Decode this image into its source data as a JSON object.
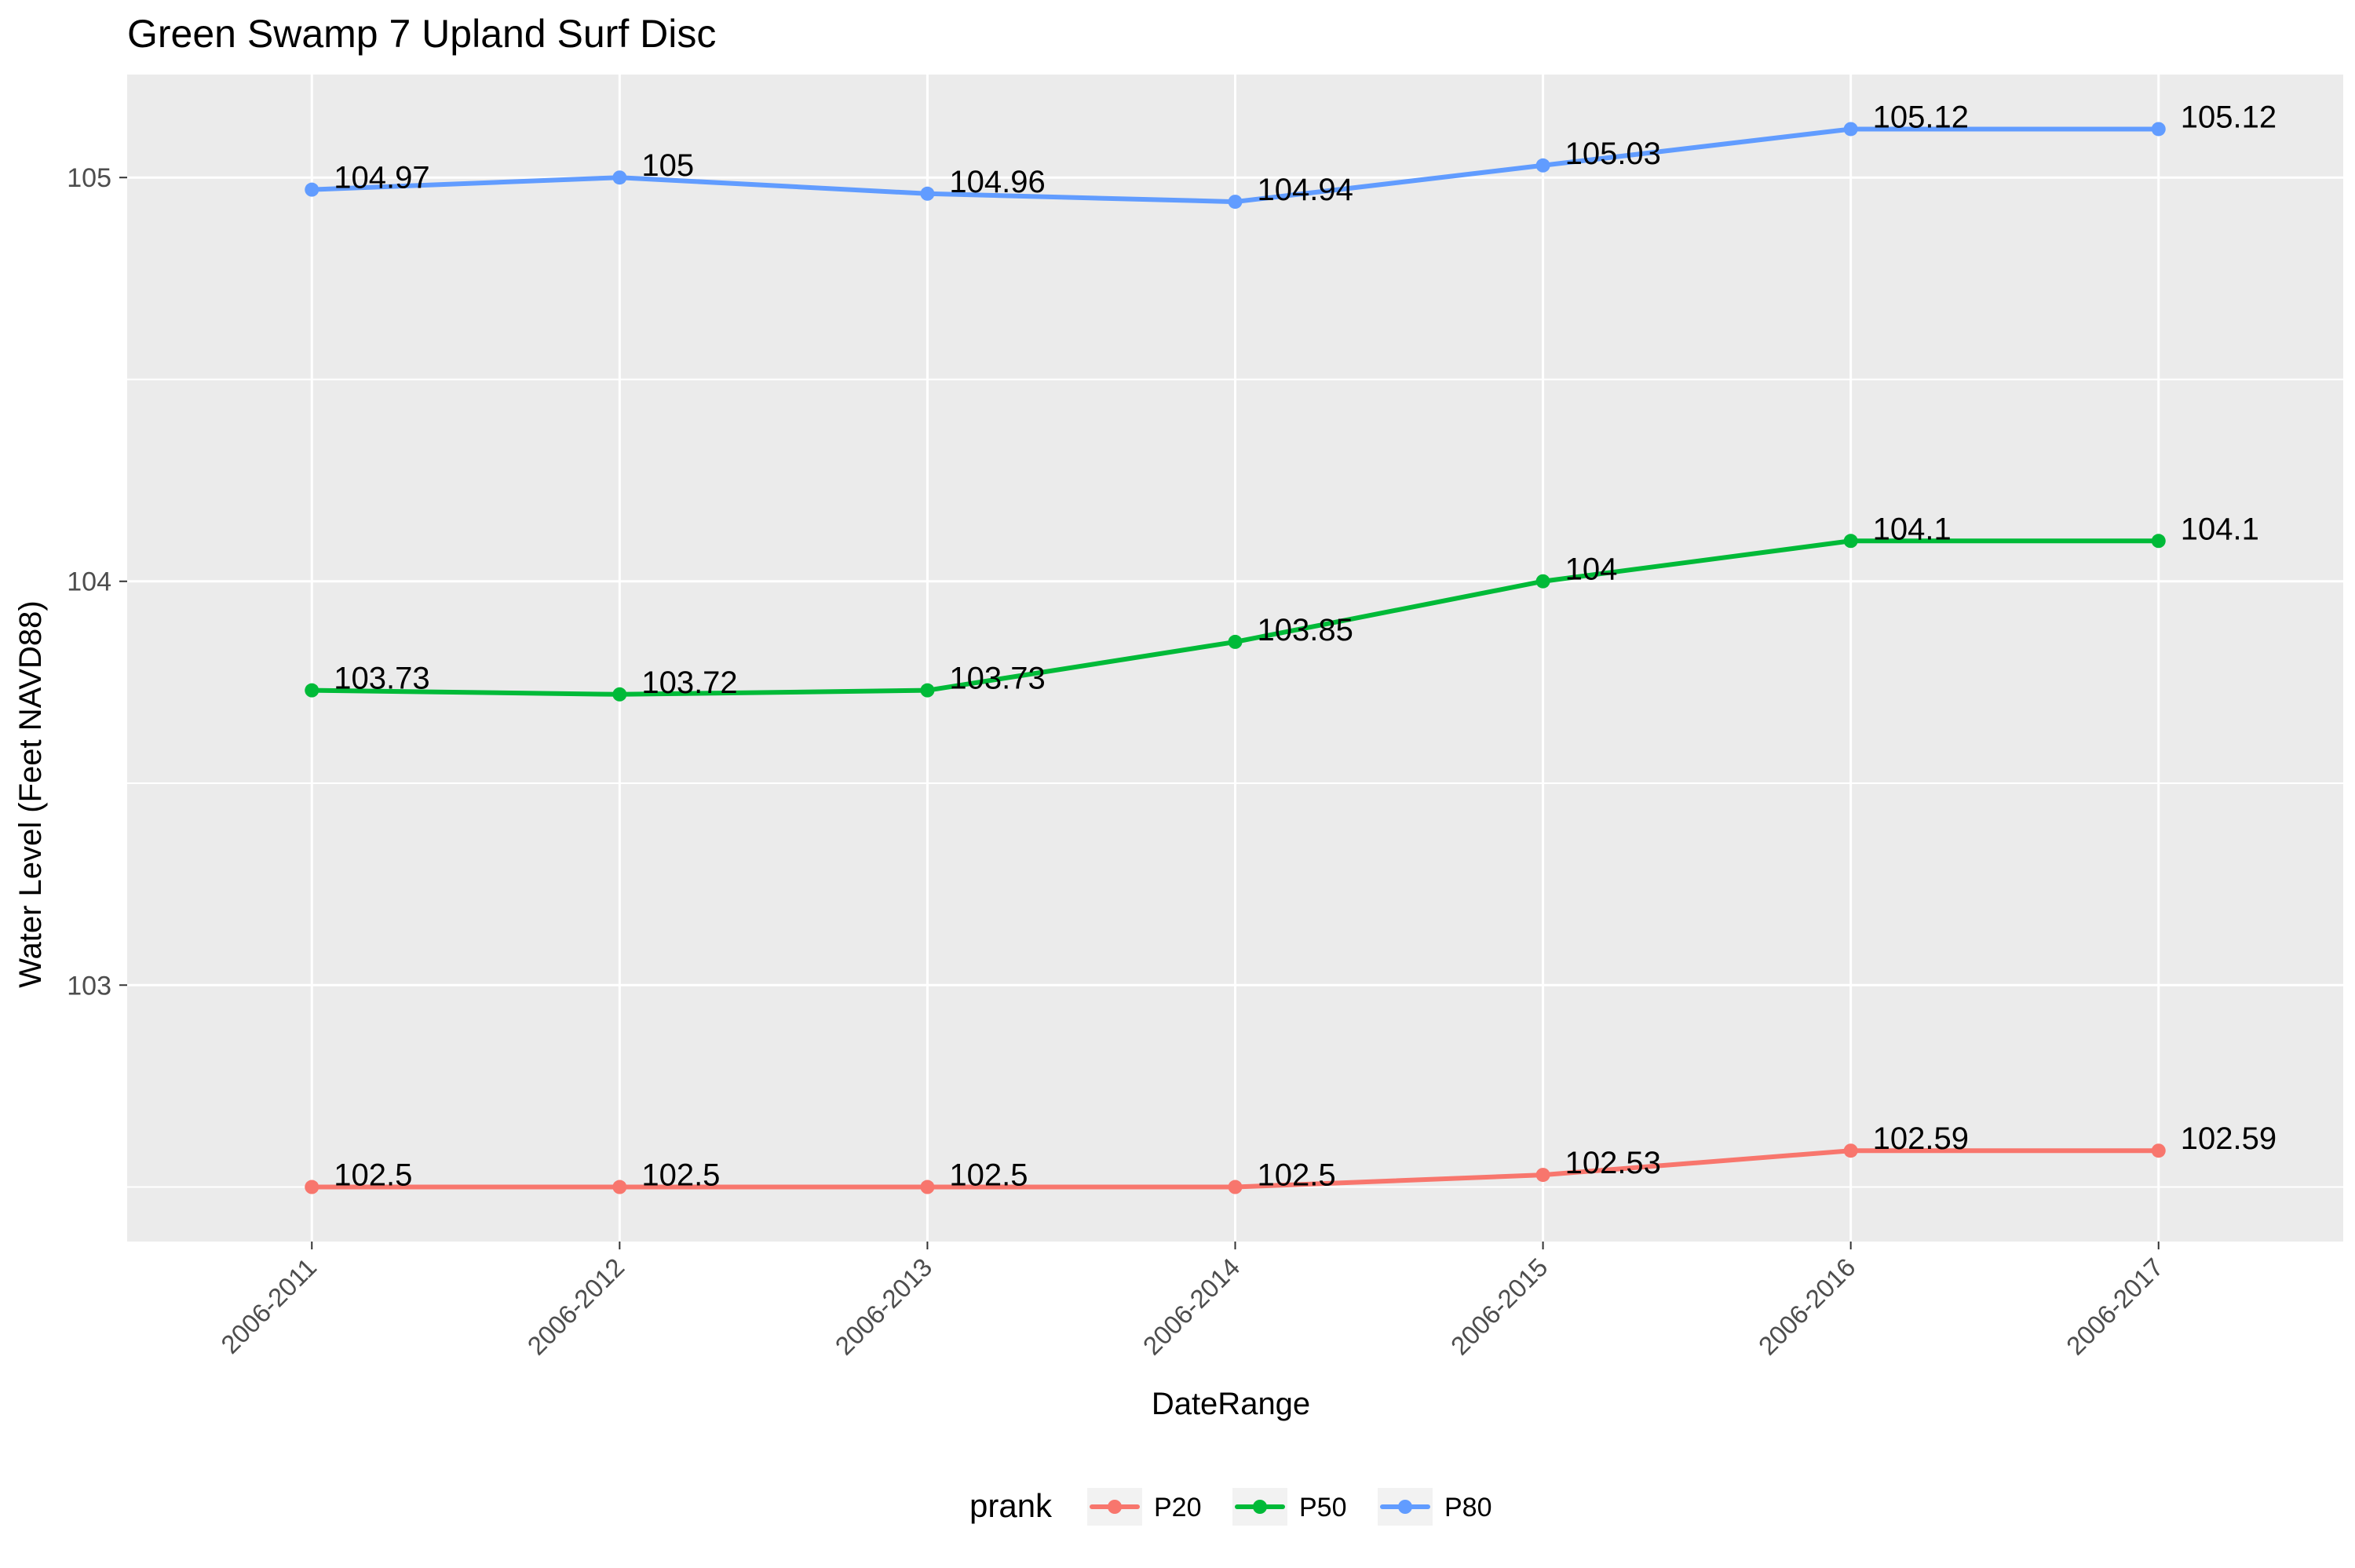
{
  "chart_data": {
    "type": "line",
    "title": "Green Swamp 7 Upland Surf Disc",
    "xlabel": "DateRange",
    "ylabel": "Water Level (Feet NAVD88)",
    "categories": [
      "2006-2011",
      "2006-2012",
      "2006-2013",
      "2006-2014",
      "2006-2015",
      "2006-2016",
      "2006-2017"
    ],
    "y_ticks": [
      103,
      104,
      105
    ],
    "y_tick_labels": [
      "103",
      "104",
      "105"
    ],
    "ylim": [
      102.365,
      105.255
    ],
    "grid": true,
    "legend": {
      "title": "prank",
      "position": "bottom"
    },
    "series": [
      {
        "name": "P20",
        "color": "#F8766D",
        "values": [
          102.5,
          102.5,
          102.5,
          102.5,
          102.53,
          102.59,
          102.59
        ],
        "labels": [
          "102.5",
          "102.5",
          "102.5",
          "102.5",
          "102.53",
          "102.59",
          "102.59"
        ]
      },
      {
        "name": "P50",
        "color": "#00BA38",
        "values": [
          103.73,
          103.72,
          103.73,
          103.85,
          104.0,
          104.1,
          104.1
        ],
        "labels": [
          "103.73",
          "103.72",
          "103.73",
          "103.85",
          "104",
          "104.1",
          "104.1"
        ]
      },
      {
        "name": "P80",
        "color": "#619CFF",
        "values": [
          104.97,
          105.0,
          104.96,
          104.94,
          105.03,
          105.12,
          105.12
        ],
        "labels": [
          "104.97",
          "105",
          "104.96",
          "104.94",
          "105.03",
          "105.12",
          "105.12"
        ]
      }
    ],
    "colors": {
      "panel_background": "#EBEBEB",
      "grid": "#FFFFFF",
      "text": "#000000",
      "tick_text": "#4D4D4D"
    }
  }
}
